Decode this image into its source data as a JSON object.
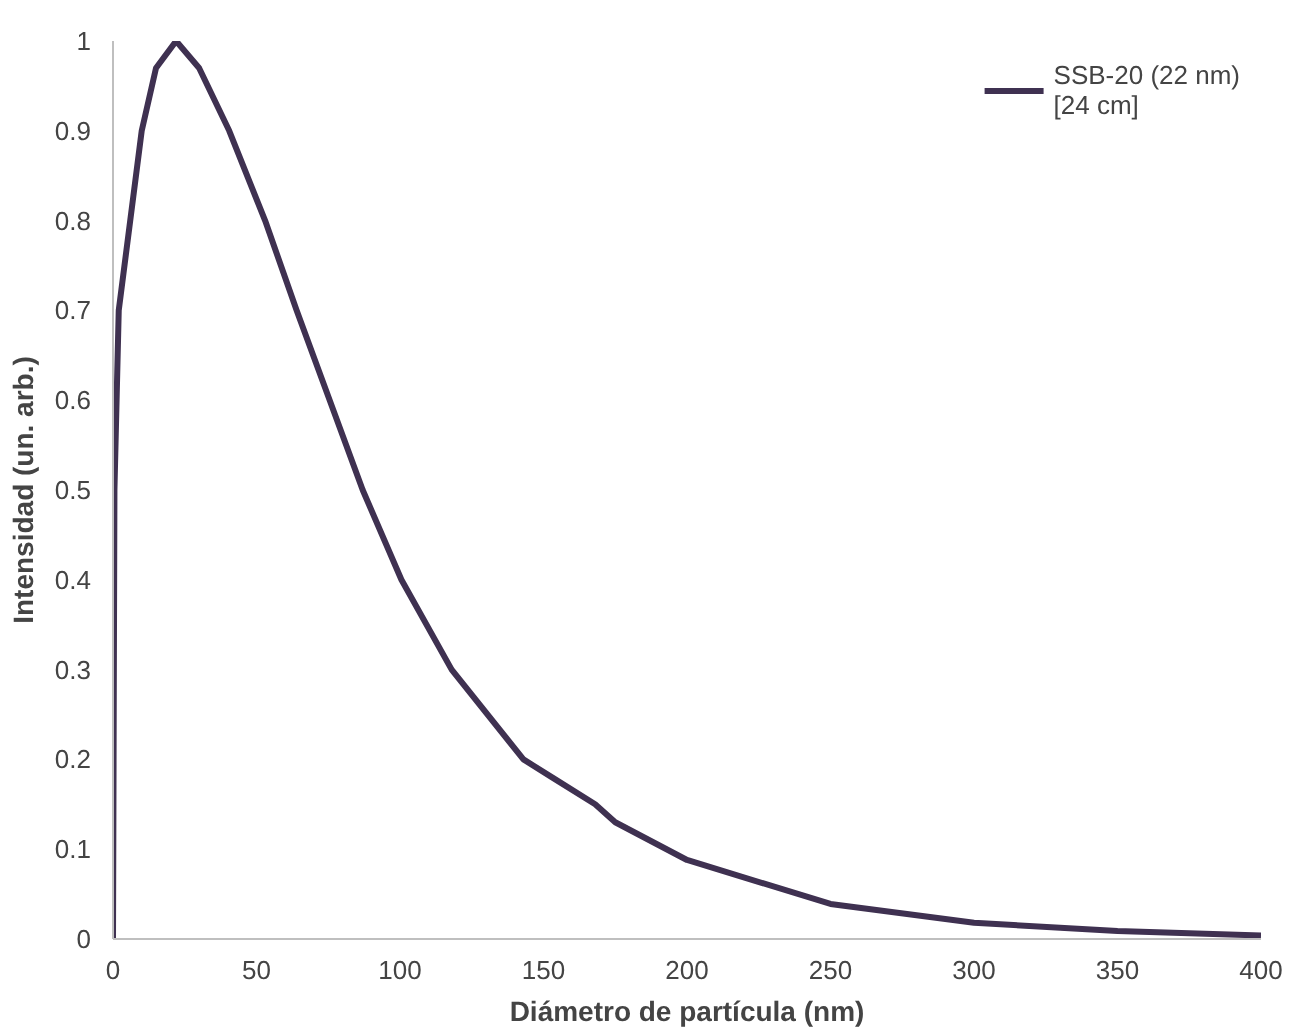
{
  "chart_data": {
    "type": "line",
    "xlabel": "Diámetro de partícula (nm)",
    "ylabel": "Intensidad (un. arb.)",
    "xlim": [
      0,
      400
    ],
    "xticks": [
      0,
      50,
      100,
      150,
      200,
      250,
      300,
      350,
      400
    ],
    "ylim": [
      0,
      1
    ],
    "yticks": [
      0,
      {
        "value": 0.1,
        "label": "0.1"
      },
      {
        "value": 0.2,
        "label": "0.2"
      },
      {
        "value": 0.3,
        "label": "0.3"
      },
      {
        "value": 0.4,
        "label": "0.4"
      },
      {
        "value": 0.5,
        "label": "0.5"
      },
      {
        "value": 0.6,
        "label": "0.6"
      },
      {
        "value": 0.7,
        "label": "0.7"
      },
      {
        "value": 0.8,
        "label": "0.8"
      },
      {
        "value": 0.9,
        "label": "0.9"
      },
      1
    ],
    "grid": false,
    "legend": "top right",
    "marker": "none",
    "line_style": "solid",
    "series": [
      {
        "name": "SSB-20 (22 nm)\n[24 cm]",
        "color": "#3f3151",
        "x": [
          0,
          0.5,
          2,
          6,
          10,
          15,
          22,
          30,
          40.5,
          53,
          64,
          75.5,
          87,
          100.5,
          118,
          143,
          153,
          168,
          175,
          200,
          250,
          300,
          350,
          400
        ],
        "values": [
          0,
          0.5,
          0.7,
          0.8,
          0.9,
          0.97,
          1,
          0.97,
          0.9,
          0.8,
          0.7,
          0.6,
          0.5,
          0.4,
          0.3,
          0.2,
          0.18,
          0.15,
          0.13,
          0.088,
          0.039,
          0.018,
          0.009,
          0.004
        ]
      }
    ]
  }
}
